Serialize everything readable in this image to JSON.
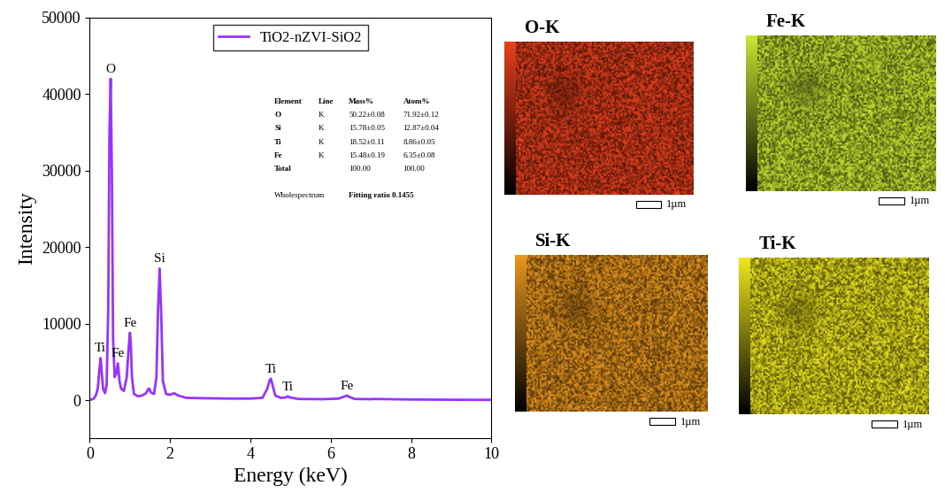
{
  "chart_data": [
    {
      "type": "line",
      "xlabel": "Energy (keV)",
      "ylabel": "Intensity",
      "xlim": [
        0,
        10
      ],
      "xticks": [
        0,
        2,
        4,
        6,
        8,
        10
      ],
      "ylim": [
        -5000,
        50000
      ],
      "yticks": [
        0,
        10000,
        20000,
        30000,
        40000,
        50000
      ],
      "grid": false,
      "legend": "upper center",
      "series": [
        {
          "name": "TiO2-nZVI-SiO2",
          "color": "#9933ff",
          "x": [
            0,
            0.1,
            0.15,
            0.2,
            0.24,
            0.27,
            0.3,
            0.33,
            0.38,
            0.42,
            0.46,
            0.49,
            0.52,
            0.55,
            0.58,
            0.62,
            0.66,
            0.7,
            0.74,
            0.78,
            0.85,
            0.92,
            0.97,
            1.0,
            1.02,
            1.05,
            1.1,
            1.2,
            1.3,
            1.4,
            1.45,
            1.48,
            1.52,
            1.6,
            1.66,
            1.7,
            1.74,
            1.78,
            1.82,
            1.9,
            2.0,
            2.1,
            2.2,
            2.4,
            2.8,
            3.5,
            4.0,
            4.3,
            4.42,
            4.48,
            4.51,
            4.55,
            4.62,
            4.75,
            4.88,
            4.93,
            4.98,
            5.2,
            5.8,
            6.2,
            6.33,
            6.4,
            6.47,
            6.6,
            7.0,
            7.1,
            8.0,
            9.0,
            10.0
          ],
          "values": [
            0,
            200,
            600,
            1500,
            4000,
            5500,
            3500,
            1500,
            900,
            2000,
            12000,
            35000,
            42000,
            30000,
            8000,
            3000,
            3500,
            4800,
            2500,
            1500,
            1200,
            3000,
            7000,
            8800,
            7500,
            3000,
            800,
            500,
            600,
            900,
            1400,
            1500,
            1000,
            800,
            3000,
            12000,
            17200,
            11000,
            2500,
            800,
            700,
            900,
            600,
            300,
            250,
            200,
            200,
            300,
            1500,
            2600,
            2800,
            2000,
            600,
            300,
            350,
            500,
            350,
            150,
            120,
            200,
            450,
            600,
            400,
            150,
            120,
            150,
            80,
            50,
            30
          ]
        }
      ],
      "peak_labels": [
        {
          "text": "Ti",
          "x": 0.27,
          "y": 5500
        },
        {
          "text": "O",
          "x": 0.52,
          "y": 42000
        },
        {
          "text": "Fe",
          "x": 0.7,
          "y": 4800
        },
        {
          "text": "Fe",
          "x": 1.0,
          "y": 8800
        },
        {
          "text": "Si",
          "x": 1.74,
          "y": 17200
        },
        {
          "text": "Ti",
          "x": 4.51,
          "y": 2800
        },
        {
          "text": "Ti",
          "x": 4.93,
          "y": 500
        },
        {
          "text": "Fe",
          "x": 6.4,
          "y": 600
        }
      ],
      "table": {
        "columns": [
          "Element",
          "Line",
          "Mass%",
          "Atom%"
        ],
        "rows": [
          [
            "O",
            "K",
            "50.22±0.08",
            "71.92±0.12"
          ],
          [
            "Si",
            "K",
            "15.78±0.05",
            "12.87±0.04"
          ],
          [
            "Ti",
            "K",
            "18.52±0.11",
            "8.86±0.05"
          ],
          [
            "Fe",
            "K",
            "15.48±0.19",
            "6.35±0.08"
          ],
          [
            "Total",
            null,
            "100.00",
            "100.00"
          ]
        ],
        "footer": [
          "Wholespectrum",
          "Fitting ratio 0.1455"
        ]
      }
    },
    {
      "type": "map",
      "title": "O-K",
      "scale_bar": "1µm",
      "color": "#e8401c"
    },
    {
      "type": "map",
      "title": "Fe-K",
      "scale_bar": "1µm",
      "color": "#c8e632"
    },
    {
      "type": "map",
      "title": "Si-K",
      "scale_bar": "1µm",
      "color": "#e8961e"
    },
    {
      "type": "map",
      "title": "Ti-K",
      "scale_bar": "1µm",
      "color": "#eee61e"
    }
  ]
}
